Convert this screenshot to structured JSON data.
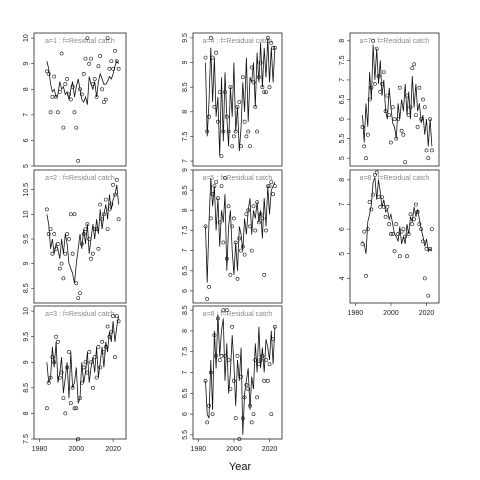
{
  "figure": {
    "xlabel": "Year"
  },
  "chart_data": [
    {
      "id": "a=1",
      "type": "line",
      "title": "a=1  :  f=Residual catch",
      "xlim": [
        1977,
        2027
      ],
      "ylim": [
        5,
        10.2
      ],
      "yticks": [
        5,
        6,
        7,
        8,
        9,
        10
      ],
      "xticks": [],
      "fitted": [
        9.1,
        8.8,
        8.2,
        7.9,
        8.0,
        7.7,
        7.8,
        8.3,
        8.0,
        8.1,
        7.8,
        7.9,
        7.6,
        8.0,
        8.3,
        7.7,
        8.1,
        8.4,
        8.0,
        7.6,
        7.5,
        7.7,
        7.4,
        8.5,
        8.2,
        8.0,
        8.3,
        7.7,
        8.3,
        8.6,
        8.4,
        8.2,
        8.2,
        8.3,
        8.5,
        8.4,
        8.6,
        8.9,
        9.1,
        9.0
      ],
      "observed": [
        8.7,
        8.6,
        7.1,
        7.7,
        8.5,
        7.7,
        7.1,
        7.9,
        9.4,
        6.5,
        8.2,
        8.4,
        7.8,
        7.6,
        8.1,
        7.1,
        6.5,
        5.2,
        8.0,
        7.8,
        8.6,
        9.2,
        10.0,
        9.0,
        9.2,
        8.2,
        8.4,
        7.7,
        8.9,
        9.3,
        8.0,
        7.5,
        7.6,
        10.0,
        8.8,
        9.1,
        8.8,
        9.5,
        9.1,
        8.8
      ]
    },
    {
      "id": "a=2",
      "type": "line",
      "title": "a=2  :  f=Residual catch",
      "xlim": [
        1977,
        2027
      ],
      "ylim": [
        8.2,
        10.9
      ],
      "yticks": [
        8.5,
        9.0,
        9.5,
        10.0,
        10.5
      ],
      "xticks": [],
      "fitted": [
        10.0,
        9.8,
        9.3,
        9.5,
        9.2,
        9.4,
        9.3,
        9.1,
        9.5,
        9.2,
        9.6,
        9.4,
        9.0,
        8.9,
        8.8,
        8.6,
        9.0,
        9.3,
        9.6,
        9.3,
        9.7,
        9.4,
        9.8,
        9.2,
        9.5,
        9.8,
        9.5,
        9.9,
        9.6,
        10.1,
        9.7,
        10.0,
        10.2,
        9.9,
        10.4,
        10.1,
        10.3,
        10.4,
        10.6,
        10.2
      ],
      "observed": [
        10.1,
        9.6,
        9.7,
        9.2,
        9.6,
        9.3,
        9.4,
        8.9,
        9.0,
        8.7,
        9.2,
        9.6,
        9.5,
        10.0,
        9.2,
        10.0,
        8.6,
        8.3,
        8.4,
        9.4,
        9.6,
        9.7,
        9.8,
        9.5,
        9.1,
        9.2,
        9.7,
        9.7,
        9.3,
        10.2,
        9.9,
        10.0,
        10.3,
        9.7,
        10.1,
        10.2,
        10.6,
        10.4,
        10.7,
        9.9
      ]
    },
    {
      "id": "a=3",
      "type": "line",
      "title": "a=3  :  f=Residual catch",
      "xlim": [
        1977,
        2027
      ],
      "ylim": [
        7.5,
        10.1
      ],
      "yticks": [
        7.5,
        8.0,
        8.5,
        9.0,
        9.5,
        10.0
      ],
      "xticks": [
        1980,
        2000,
        2020
      ],
      "fitted": [
        9.0,
        8.6,
        8.7,
        9.3,
        8.9,
        9.4,
        8.6,
        8.8,
        9.1,
        8.4,
        8.7,
        9.0,
        8.3,
        9.2,
        8.5,
        8.6,
        8.9,
        8.2,
        8.3,
        9.0,
        8.6,
        8.8,
        9.2,
        8.6,
        8.9,
        9.1,
        8.8,
        9.3,
        8.7,
        9.0,
        9.3,
        8.9,
        9.4,
        9.2,
        9.6,
        9.4,
        9.8,
        9.4,
        9.7,
        9.9
      ],
      "observed": [
        8.1,
        8.6,
        8.7,
        9.1,
        9.0,
        9.5,
        9.4,
        8.7,
        8.8,
        8.3,
        8.0,
        8.9,
        9.2,
        8.2,
        8.5,
        8.1,
        8.1,
        7.5,
        8.3,
        8.6,
        8.9,
        9.0,
        8.8,
        9.2,
        9.0,
        8.5,
        9.1,
        8.7,
        9.3,
        8.9,
        9.4,
        9.2,
        9.3,
        9.7,
        9.5,
        9.6,
        9.9,
        9.1,
        9.9,
        9.8
      ]
    },
    {
      "id": "a=4",
      "type": "line",
      "title": "a=4  :  f=Residual catch",
      "xlim": [
        1977,
        2027
      ],
      "ylim": [
        6.9,
        9.6
      ],
      "yticks": [
        7.0,
        7.5,
        8.0,
        8.5,
        9.0,
        9.5
      ],
      "xticks": [],
      "fitted": [
        9.0,
        7.5,
        8.2,
        9.3,
        8.2,
        9.1,
        7.9,
        8.3,
        7.1,
        8.7,
        7.4,
        8.8,
        7.9,
        7.3,
        8.5,
        7.9,
        9.0,
        7.6,
        8.1,
        7.2,
        7.7,
        8.6,
        8.0,
        9.1,
        7.8,
        8.7,
        8.6,
        9.0,
        8.1,
        9.2,
        8.6,
        9.4,
        8.5,
        9.3,
        8.7,
        9.5,
        8.6,
        9.3,
        8.6,
        9.3
      ],
      "observed": [
        9.1,
        7.6,
        7.9,
        9.5,
        9.1,
        8.1,
        9.2,
        7.8,
        8.4,
        7.1,
        7.6,
        8.4,
        7.9,
        7.6,
        8.5,
        7.3,
        7.5,
        7.6,
        8.1,
        8.2,
        7.3,
        8.7,
        7.8,
        7.5,
        7.6,
        7.3,
        8.9,
        8.6,
        8.1,
        7.6,
        8.7,
        9.0,
        8.5,
        8.4,
        8.4,
        9.5,
        8.5,
        9.4,
        9.3,
        9.3
      ]
    },
    {
      "id": "a=5",
      "type": "line",
      "title": "a=5  :  f=Residual catch",
      "xlim": [
        1977,
        2027
      ],
      "ylim": [
        5.7,
        9.0
      ],
      "yticks": [
        6.0,
        6.5,
        7.0,
        7.5,
        8.0,
        8.5,
        9.0
      ],
      "xticks": [],
      "fitted": [
        7.6,
        6.2,
        7.7,
        8.8,
        8.1,
        8.6,
        7.5,
        8.3,
        7.1,
        8.0,
        7.7,
        8.4,
        6.5,
        7.6,
        8.0,
        7.0,
        6.4,
        7.2,
        6.5,
        7.6,
        7.4,
        7.0,
        7.8,
        7.4,
        8.0,
        8.3,
        7.4,
        8.0,
        7.8,
        8.2,
        7.7,
        8.0,
        7.3,
        8.3,
        7.6,
        8.6,
        7.9,
        8.5,
        8.6,
        8.7
      ],
      "observed": [
        7.6,
        5.8,
        6.1,
        7.8,
        8.4,
        8.6,
        8.7,
        8.3,
        7.7,
        8.6,
        7.2,
        8.8,
        6.8,
        8.1,
        6.4,
        7.6,
        7.8,
        7.2,
        6.3,
        7.3,
        7.0,
        7.1,
        6.9,
        7.9,
        8.0,
        7.6,
        7.0,
        8.1,
        7.5,
        8.2,
        7.7,
        7.9,
        7.8,
        6.4,
        7.5,
        8.6,
        8.6,
        8.7,
        8.4,
        8.6
      ]
    },
    {
      "id": "a=6",
      "type": "line",
      "title": "a=6  :  f=Residual catch",
      "xlim": [
        1977,
        2027
      ],
      "ylim": [
        5.4,
        8.6
      ],
      "yticks": [
        5.5,
        6.0,
        6.5,
        7.0,
        7.5,
        8.0,
        8.5
      ],
      "xticks": [
        1980,
        2000,
        2020
      ],
      "fitted": [
        6.8,
        6.0,
        5.9,
        7.3,
        6.1,
        8.0,
        7.1,
        8.4,
        7.4,
        8.0,
        8.3,
        6.8,
        7.7,
        6.5,
        7.0,
        7.9,
        7.2,
        6.2,
        7.3,
        6.8,
        7.6,
        5.5,
        6.5,
        6.8,
        7.1,
        6.1,
        6.9,
        6.6,
        7.7,
        7.0,
        8.1,
        7.1,
        7.6,
        7.0,
        7.8,
        7.6,
        7.3,
        8.0,
        7.2,
        8.1
      ],
      "observed": [
        6.8,
        5.8,
        6.2,
        7.0,
        6.0,
        7.9,
        7.4,
        8.3,
        7.3,
        7.4,
        8.5,
        7.4,
        8.5,
        7.3,
        6.6,
        8.1,
        6.8,
        5.9,
        7.4,
        5.4,
        6.9,
        5.9,
        6.4,
        6.7,
        6.6,
        6.2,
        5.8,
        6.0,
        7.3,
        6.4,
        7.2,
        7.3,
        7.4,
        6.8,
        7.3,
        6.8,
        7.2,
        6.0,
        7.8,
        8.1
      ]
    },
    {
      "id": "a=7",
      "type": "line",
      "title": "a=7  :  f=Residual catch",
      "xlim": [
        1977,
        2027
      ],
      "ylim": [
        4.8,
        8.2
      ],
      "yticks": [
        5.0,
        5.5,
        6.0,
        6.5,
        7.0,
        7.5,
        8.0
      ],
      "xticks": [],
      "fitted": [
        6.1,
        5.4,
        6.4,
        5.8,
        7.2,
        6.5,
        7.9,
        7.0,
        7.8,
        6.9,
        7.5,
        6.6,
        7.0,
        6.2,
        6.0,
        6.8,
        6.3,
        5.9,
        5.8,
        5.5,
        6.4,
        6.0,
        6.5,
        6.2,
        6.9,
        6.1,
        6.7,
        6.0,
        7.1,
        6.3,
        6.9,
        6.2,
        6.4,
        5.9,
        6.1,
        5.6,
        6.0,
        5.3,
        6.0,
        5.3
      ],
      "observed": [
        5.8,
        5.3,
        5.0,
        5.6,
        6.5,
        6.8,
        8.0,
        6.9,
        7.8,
        7.1,
        6.7,
        6.9,
        7.2,
        6.2,
        6.6,
        6.1,
        5.4,
        6.3,
        6.0,
        5.5,
        6.0,
        6.8,
        5.7,
        5.6,
        4.9,
        6.6,
        6.1,
        6.3,
        7.3,
        7.4,
        6.1,
        5.8,
        6.8,
        6.0,
        6.5,
        6.3,
        5.2,
        5.0,
        6.0,
        5.2
      ]
    },
    {
      "id": "a=8",
      "type": "line",
      "title": "a=8  :  f=Residual catch",
      "xlim": [
        1977,
        2027
      ],
      "ylim": [
        3.0,
        8.4
      ],
      "yticks": [
        4,
        5,
        6,
        7,
        8
      ],
      "xticks": [
        1980,
        2000,
        2020
      ],
      "fitted": [
        5.5,
        5.4,
        5.0,
        6.3,
        6.6,
        7.0,
        7.9,
        8.1,
        7.2,
        8.0,
        7.5,
        6.9,
        7.2,
        6.7,
        6.8,
        6.4,
        6.6,
        6.2,
        5.8,
        5.7,
        5.5,
        6.1,
        5.4,
        5.7,
        5.4,
        6.2,
        5.8,
        6.5,
        6.3,
        6.9,
        6.5,
        6.8,
        6.4,
        6.0,
        5.7,
        5.3,
        5.6,
        5.1,
        5.2,
        5.1
      ],
      "observed": [
        5.4,
        5.9,
        4.1,
        6.0,
        7.1,
        6.8,
        7.4,
        8.2,
        8.3,
        7.3,
        6.9,
        7.3,
        6.9,
        6.5,
        6.9,
        6.2,
        5.8,
        5.8,
        5.1,
        6.2,
        5.8,
        4.9,
        5.9,
        6.0,
        5.7,
        4.9,
        5.8,
        6.6,
        6.2,
        6.4,
        7.0,
        6.7,
        6.2,
        6.0,
        5.5,
        4.0,
        5.2,
        3.3,
        5.2,
        6.0
      ]
    }
  ]
}
